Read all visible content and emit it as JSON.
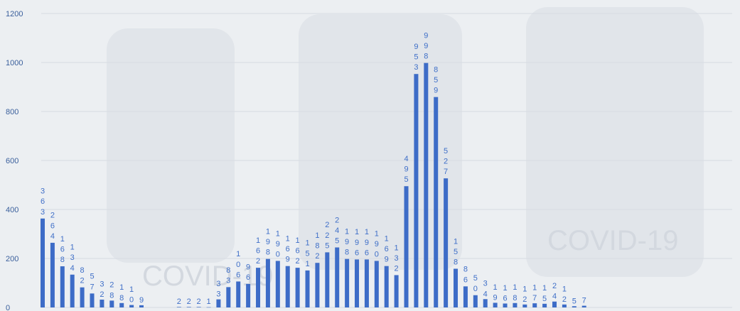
{
  "chart_data": {
    "type": "bar",
    "title": "",
    "xlabel": "",
    "ylabel": "",
    "ylim": [
      0,
      1200
    ],
    "yticks": [
      0,
      200,
      400,
      600,
      800,
      1000,
      1200
    ],
    "grid": true,
    "bar_color": "#3d6cc7",
    "label_color": "#3f6fc8",
    "values": [
      363,
      264,
      168,
      134,
      82,
      57,
      32,
      28,
      18,
      10,
      9,
      2,
      2,
      2,
      1,
      33,
      83,
      106,
      96,
      162,
      198,
      190,
      169,
      162,
      151,
      182,
      225,
      245,
      198,
      196,
      196,
      190,
      169,
      132,
      495,
      953,
      998,
      859,
      527,
      158,
      86,
      50,
      34,
      19,
      16,
      18,
      12,
      17,
      15,
      24,
      12,
      5,
      7
    ],
    "labels": [
      "363",
      "264",
      "168",
      "134",
      "82",
      "57",
      "32",
      "28",
      "18",
      "10",
      "9",
      "2",
      "2",
      "2",
      "1",
      "33",
      "83",
      "106",
      "96",
      "162",
      "198",
      "190",
      "169",
      "162",
      "151",
      "182",
      "225",
      "245",
      "198",
      "196",
      "196",
      "190",
      "169",
      "132",
      "495",
      "953",
      "998",
      "859",
      "527",
      "158",
      "86",
      "50",
      "34",
      "19",
      "16",
      "18",
      "12",
      "17",
      "15",
      "24",
      "12",
      "5",
      "7"
    ]
  },
  "watermark_text": "COVID-19"
}
